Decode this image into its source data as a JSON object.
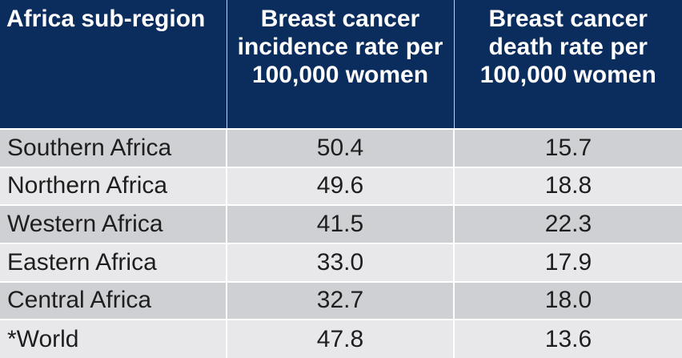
{
  "chart_data": {
    "type": "table",
    "columns": [
      "Africa sub-region",
      "Breast cancer incidence rate per 100,000 women",
      "Breast cancer death rate per 100,000 women"
    ],
    "rows": [
      {
        "region": "Southern Africa",
        "incidence": "50.4",
        "death": "15.7"
      },
      {
        "region": "Northern Africa",
        "incidence": "49.6",
        "death": "18.8"
      },
      {
        "region": "Western Africa",
        "incidence": "41.5",
        "death": "22.3"
      },
      {
        "region": "Eastern Africa",
        "incidence": "33.0",
        "death": "17.9"
      },
      {
        "region": "Central Africa",
        "incidence": "32.7",
        "death": "18.0"
      },
      {
        "region": "*World",
        "incidence": "47.8",
        "death": "13.6"
      }
    ]
  },
  "colors": {
    "header_bg": "#0b2d5e",
    "row_dark": "#cfd0d4",
    "row_light": "#e8e8ea"
  }
}
